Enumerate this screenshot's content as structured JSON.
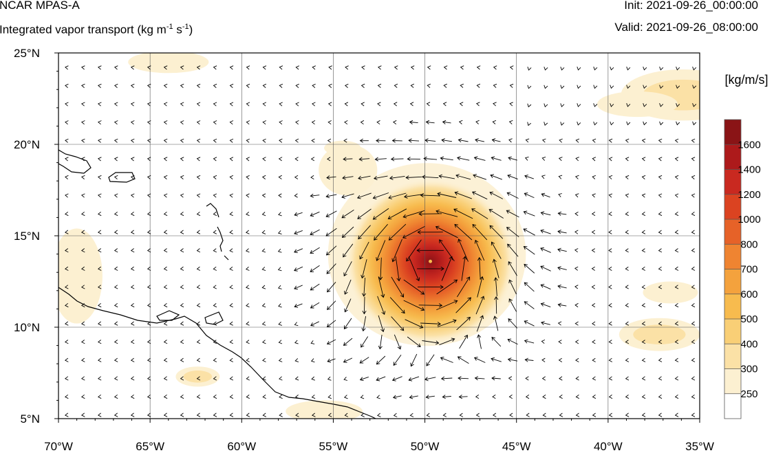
{
  "header": {
    "model": "NCAR MPAS-A",
    "field_name": "Integrated vapor transport (kg m",
    "unit_m_exp": "-1",
    "unit_s": " s",
    "unit_s_exp": "-1",
    "unit_close": ")",
    "init_label": "Init: 2021-09-26_00:00:00",
    "valid_label": "Valid: 2021-09-26_08:00:00"
  },
  "map": {
    "lon_range": [
      -70,
      -35
    ],
    "lat_range": [
      5,
      25
    ],
    "lat_ticks": [
      {
        "value": 25,
        "label": "25°N"
      },
      {
        "value": 20,
        "label": "20°N"
      },
      {
        "value": 15,
        "label": "15°N"
      },
      {
        "value": 10,
        "label": "10°N"
      },
      {
        "value": 5,
        "label": "5°N"
      }
    ],
    "lon_ticks": [
      {
        "value": -70,
        "label": "70°W"
      },
      {
        "value": -65,
        "label": "65°W"
      },
      {
        "value": -60,
        "label": "60°W"
      },
      {
        "value": -55,
        "label": "55°W"
      },
      {
        "value": -50,
        "label": "50°W"
      },
      {
        "value": -45,
        "label": "45°W"
      },
      {
        "value": -40,
        "label": "40°W"
      },
      {
        "value": -35,
        "label": "35°W"
      }
    ],
    "gridlines": true,
    "cyclone_center": {
      "lon": -49.7,
      "lat": 13.6
    },
    "moist_patches": [
      {
        "lon": -35.9,
        "lat": 22.7,
        "rlon": 3.4,
        "rlat": 1.4,
        "level": 300
      },
      {
        "lon": -38.4,
        "lat": 22.2,
        "rlon": 2.2,
        "rlat": 0.7,
        "level": 250
      },
      {
        "lon": -69.0,
        "lat": 12.8,
        "rlon": 1.4,
        "rlat": 2.6,
        "level": 250
      },
      {
        "lon": -37.2,
        "lat": 9.6,
        "rlon": 2.2,
        "rlat": 0.9,
        "level": 300
      },
      {
        "lon": -36.6,
        "lat": 11.9,
        "rlon": 1.5,
        "rlat": 0.6,
        "level": 250
      },
      {
        "lon": -62.4,
        "lat": 7.3,
        "rlon": 1.2,
        "rlat": 0.55,
        "level": 300
      },
      {
        "lon": -55.5,
        "lat": 5.4,
        "rlon": 2.1,
        "rlat": 0.6,
        "level": 250
      },
      {
        "lon": -64.0,
        "lat": 24.5,
        "rlon": 2.2,
        "rlat": 0.6,
        "level": 250
      },
      {
        "lon": -54.5,
        "lat": 19.8,
        "rlon": 1.0,
        "rlat": 0.4,
        "level": 250
      }
    ],
    "wind_field": "cyclonic circulation around storm center embedded in easterly trade winds"
  },
  "colorbar": {
    "title": "[kg/m/s]",
    "levels": [
      "250",
      "300",
      "400",
      "500",
      "600",
      "700",
      "800",
      "1000",
      "1200",
      "1400",
      "1600"
    ],
    "colors": [
      "#ffffff",
      "#fcf0d1",
      "#fbe1a6",
      "#f9cf76",
      "#f7bb4e",
      "#f4a23d",
      "#ef8431",
      "#e66228",
      "#db4321",
      "#c92920",
      "#ad1a1b",
      "#8a1416"
    ]
  }
}
